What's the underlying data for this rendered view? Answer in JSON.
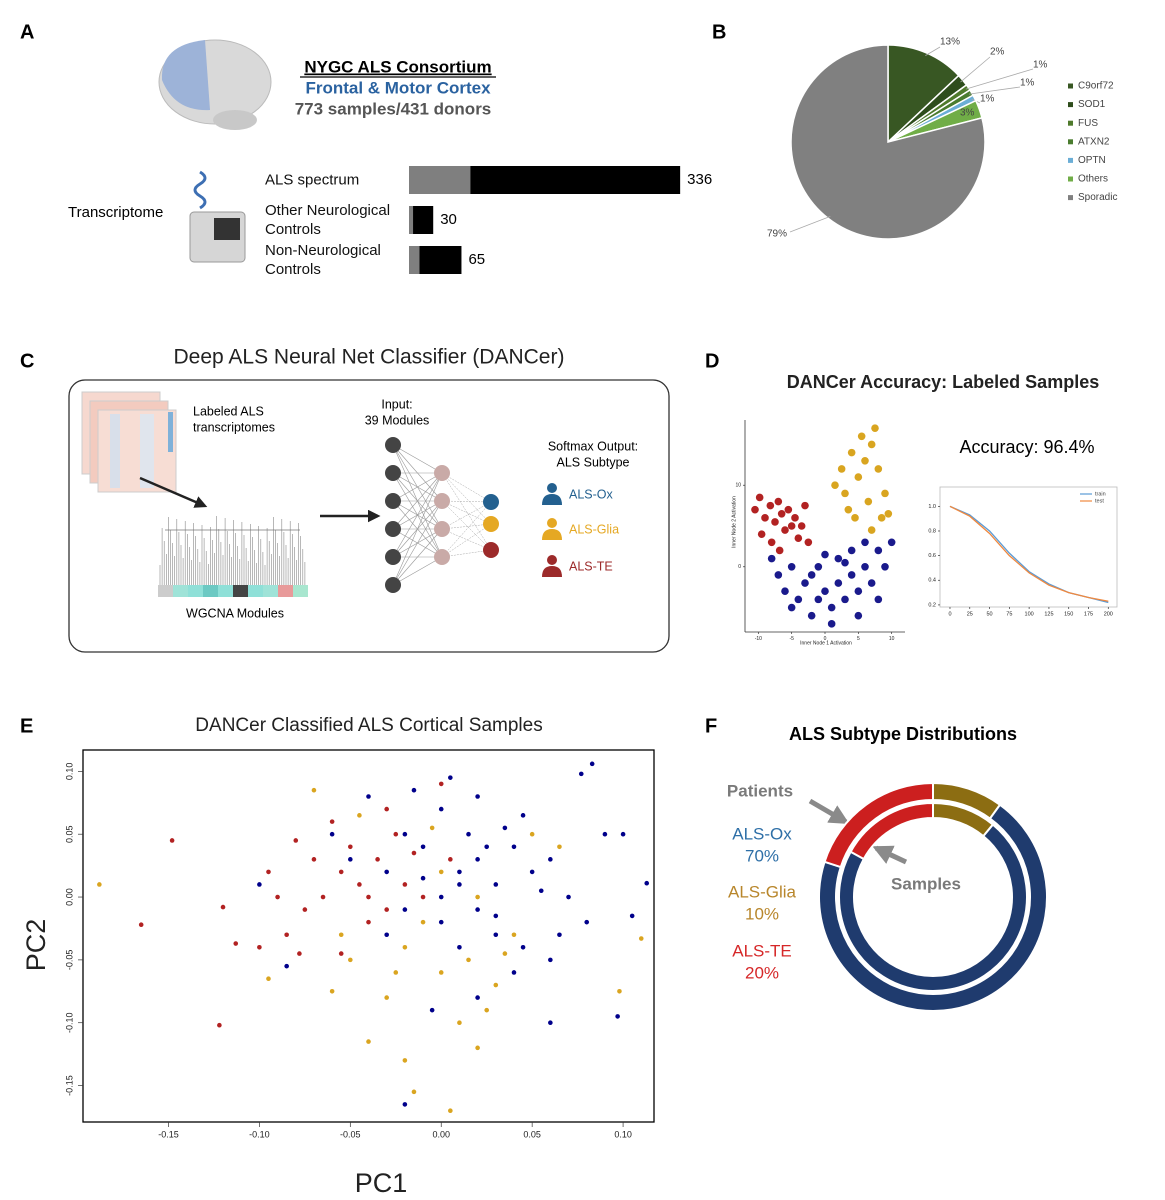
{
  "panels": [
    "A",
    "B",
    "C",
    "D",
    "E",
    "F"
  ],
  "cohort": {
    "title": "NYGC ALS Consortium",
    "region": "Frontal & Motor Cortex",
    "samples": "773 samples/431 donors",
    "assay": "Transcriptome"
  },
  "classifier": {
    "title": "Deep ALS Neural Net Classifier (DANCer)",
    "input_data": [
      "Labeled ALS",
      "transcriptomes"
    ],
    "modules": "WGCNA Modules",
    "input_layer": [
      "Input:",
      "39 Modules"
    ],
    "output_layer": [
      "Softmax Output:",
      "ALS Subtype"
    ],
    "outputs": [
      {
        "label": "ALS-Ox",
        "color": "#23608f"
      },
      {
        "label": "ALS-Glia",
        "color": "#e5a823"
      },
      {
        "label": "ALS-TE",
        "color": "#9c2a2a"
      }
    ]
  },
  "chart_data": [
    {
      "type": "bar",
      "categories": [
        "ALS spectrum",
        "Other Neurological Controls",
        "Non-Neurological Controls"
      ],
      "series": [
        {
          "color": "#7f7f7f",
          "values": [
            76,
            5,
            13
          ]
        },
        {
          "color": "#000000",
          "values": [
            260,
            25,
            52
          ]
        }
      ],
      "totals": [
        336,
        30,
        65
      ]
    },
    {
      "type": "pie",
      "categories": [
        "C9orf72",
        "SOD1",
        "FUS",
        "ATXN2",
        "OPTN",
        "Others",
        "Sporadic"
      ],
      "values": [
        13,
        2,
        1,
        1,
        1,
        3,
        79
      ],
      "value_labels": [
        "13%",
        "2%",
        "1%",
        "1%",
        "1%",
        "3%",
        "79%"
      ],
      "colors": [
        "#385723",
        "#2e4d1c",
        "#4f7a2c",
        "#4a7c2f",
        "#6baed6",
        "#70ad47",
        "#808080"
      ]
    },
    {
      "type": "scatter",
      "title": "DANCer Accuracy: Labeled Samples",
      "xlabel": "Inner Node 1 Activation",
      "ylabel": "Inner Node 2 Activation",
      "xlim": [
        -12,
        12
      ],
      "ylim": [
        -8,
        18
      ],
      "xticks": [
        -10,
        -5,
        0,
        5,
        10
      ],
      "yticks": [
        0,
        10
      ],
      "series": [
        {
          "color": "#b22222",
          "x": [
            -10.5,
            -9.8,
            -9,
            -8.2,
            -7.5,
            -7,
            -6.5,
            -6,
            -5.5,
            -5,
            -4.5,
            -4,
            -3.5,
            -3,
            -2.5,
            -9.5,
            -8,
            -6.8
          ],
          "values": [
            7,
            8.5,
            6,
            7.5,
            5.5,
            8,
            6.5,
            4.5,
            7,
            5,
            6,
            3.5,
            5,
            7.5,
            3,
            4,
            3,
            2
          ]
        },
        {
          "color": "#1a1a8c",
          "x": [
            -8,
            -7,
            -6,
            -5,
            -4,
            -3,
            -2,
            -1,
            0,
            1,
            2,
            3,
            4,
            5,
            6,
            7,
            8,
            9,
            10,
            2,
            4,
            6,
            -1,
            0,
            3,
            -2,
            5,
            1,
            8,
            -5
          ],
          "values": [
            1,
            -1,
            -3,
            0,
            -4,
            -2,
            -6,
            -4,
            -3,
            -5,
            -2,
            -4,
            -1,
            -3,
            0,
            -2,
            2,
            0,
            3,
            1,
            2,
            3,
            0,
            1.5,
            0.5,
            -1,
            -6,
            -7,
            -4,
            -5
          ]
        },
        {
          "color": "#d9a520",
          "x": [
            1.5,
            2.5,
            3,
            4,
            5,
            5.5,
            6,
            6.5,
            7,
            7.5,
            8,
            8.5,
            9,
            9.5,
            4.5,
            3.5,
            7
          ],
          "values": [
            10,
            12,
            9,
            14,
            11,
            16,
            13,
            8,
            15,
            17,
            12,
            6,
            9,
            6.5,
            6,
            7,
            4.5
          ]
        }
      ]
    },
    {
      "type": "line",
      "annotation": "Accuracy: 96.4%",
      "x": [
        0,
        25,
        50,
        75,
        100,
        125,
        150,
        175,
        200
      ],
      "xlim": [
        -12.6,
        211
      ],
      "ylim": [
        0.183,
        1.157
      ],
      "xticks": [
        0,
        25,
        50,
        75,
        100,
        125,
        150,
        175,
        200
      ],
      "yticks": [
        0.2,
        0.4,
        0.6,
        0.8,
        {
          "value": 1,
          "label": "1.0"
        }
      ],
      "series": [
        {
          "name": "train",
          "color": "#5b9bd5",
          "values": [
            1.0,
            0.93,
            0.8,
            0.62,
            0.47,
            0.37,
            0.3,
            0.26,
            0.22
          ]
        },
        {
          "name": "test",
          "color": "#f0883e",
          "values": [
            1.0,
            0.92,
            0.78,
            0.6,
            0.46,
            0.36,
            0.3,
            0.26,
            0.23
          ]
        }
      ]
    },
    {
      "type": "scatter",
      "title": "DANCer Classified ALS Cortical Samples",
      "xlabel": "PC1",
      "ylabel": "PC2",
      "xlim": [
        -0.197,
        0.117
      ],
      "ylim": [
        -0.179,
        0.117
      ],
      "xticks": [
        -0.15,
        {
          "value": -0.1,
          "label": "-0.10"
        },
        -0.05,
        {
          "value": 0,
          "label": "0.00"
        },
        0.05,
        {
          "value": 0.1,
          "label": "0.10"
        }
      ],
      "yticks": [
        {
          "value": 0.1,
          "label": "0.10"
        },
        0.05,
        {
          "value": 0,
          "label": "0.00"
        },
        -0.05,
        {
          "value": -0.1,
          "label": "-0.10"
        },
        -0.15
      ],
      "series": [
        {
          "color": "#00008b",
          "x": [
            0.01,
            0.02,
            0.03,
            0.0,
            -0.01,
            0.04,
            0.05,
            0.02,
            0.0,
            0.03,
            0.01,
            -0.02,
            0.0,
            -0.015,
            0.005,
            0.045,
            0.06,
            0.07,
            0.08,
            0.09,
            0.1,
            0.113,
            0.105,
            0.077,
            0.083,
            0.06,
            0.04,
            0.02,
            -0.005,
            -0.02,
            -0.04,
            -0.06,
            -0.05,
            -0.03,
            -0.02,
            0.015,
            0.035,
            0.025,
            0.055,
            0.065,
            -0.1,
            -0.085,
            0.097,
            0.06,
            -0.03,
            0.01,
            -0.01,
            0.03,
            0.045,
            0.02
          ],
          "values": [
            0.02,
            0.03,
            0.01,
            0.0,
            0.04,
            0.04,
            0.02,
            -0.01,
            -0.02,
            -0.03,
            -0.04,
            0.05,
            0.07,
            0.085,
            0.095,
            0.065,
            0.03,
            0.0,
            -0.02,
            0.05,
            0.05,
            0.011,
            -0.015,
            0.098,
            0.106,
            -0.05,
            -0.06,
            -0.08,
            -0.09,
            -0.165,
            0.08,
            0.05,
            0.03,
            0.02,
            -0.01,
            0.05,
            0.055,
            0.04,
            0.005,
            -0.03,
            0.01,
            -0.055,
            -0.095,
            -0.1,
            -0.03,
            0.01,
            0.015,
            -0.015,
            -0.04,
            0.08
          ]
        },
        {
          "color": "#b22222",
          "x": [
            -0.165,
            -0.148,
            -0.12,
            -0.122,
            -0.113,
            -0.09,
            -0.085,
            -0.07,
            -0.065,
            -0.055,
            -0.05,
            -0.045,
            -0.04,
            -0.035,
            -0.03,
            -0.025,
            -0.02,
            -0.06,
            -0.075,
            -0.015,
            -0.01,
            0.005,
            0.0,
            -0.03,
            -0.08,
            -0.095,
            -0.055,
            -0.04,
            -0.078,
            -0.1
          ],
          "values": [
            -0.022,
            0.045,
            -0.008,
            -0.102,
            -0.037,
            0.0,
            -0.03,
            0.03,
            0.0,
            0.02,
            0.04,
            0.01,
            0.0,
            0.03,
            -0.01,
            0.05,
            0.01,
            0.06,
            -0.01,
            0.035,
            0.0,
            0.03,
            0.09,
            0.07,
            0.045,
            0.02,
            -0.045,
            -0.02,
            -0.045,
            -0.04
          ]
        },
        {
          "color": "#daa520",
          "x": [
            -0.188,
            -0.095,
            0.11,
            0.005,
            -0.015,
            -0.02,
            -0.04,
            0.02,
            0.01,
            -0.03,
            0.0,
            0.015,
            0.03,
            -0.05,
            -0.055,
            -0.02,
            0.025,
            0.04,
            0.05,
            0.065,
            0.098,
            -0.06,
            -0.07,
            -0.045,
            0.0,
            -0.01,
            0.035,
            -0.005,
            0.02,
            -0.025
          ],
          "values": [
            0.01,
            -0.065,
            -0.033,
            -0.17,
            -0.155,
            -0.13,
            -0.115,
            -0.12,
            -0.1,
            -0.08,
            -0.06,
            -0.05,
            -0.07,
            -0.05,
            -0.03,
            -0.04,
            -0.09,
            -0.03,
            0.05,
            0.04,
            -0.075,
            -0.075,
            0.085,
            0.065,
            0.02,
            -0.02,
            -0.045,
            0.055,
            0.0,
            -0.06
          ]
        }
      ]
    },
    {
      "type": "donut",
      "title": "ALS Subtype Distributions",
      "categories": [
        "ALS-Ox",
        "ALS-Glia",
        "ALS-TE"
      ],
      "colors": [
        "#1f3b6e",
        "#8c6d12",
        "#cc1f1f"
      ],
      "label_colors": [
        "#2e6fa7",
        "#b8862b",
        "#d62728"
      ],
      "series": [
        {
          "name": "Patients",
          "values": [
            70,
            10,
            20
          ],
          "value_labels": [
            "70%",
            "10%",
            "20%"
          ]
        },
        {
          "name": "Samples",
          "values": [
            72,
            11,
            17
          ]
        }
      ]
    }
  ]
}
